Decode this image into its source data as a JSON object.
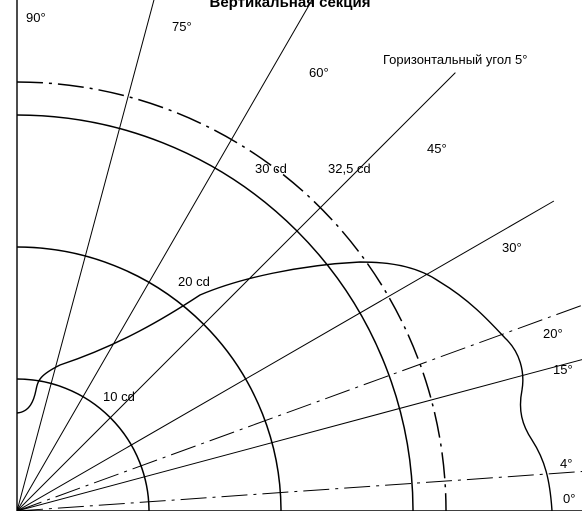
{
  "title": "Вертикальная секция",
  "horizontal_angle_label": "Горизонтальный угол 5°",
  "angle_lines": [
    {
      "angle": 90,
      "label": "90°",
      "style": "solid"
    },
    {
      "angle": 75,
      "label": "75°",
      "style": "solid"
    },
    {
      "angle": 60,
      "label": "60°",
      "style": "solid"
    },
    {
      "angle": 45,
      "label": "45°",
      "style": "solid"
    },
    {
      "angle": 30,
      "label": "30°",
      "style": "solid"
    },
    {
      "angle": 20,
      "label": "20°",
      "style": "dashdot"
    },
    {
      "angle": 15,
      "label": "15°",
      "style": "solid"
    },
    {
      "angle": 4,
      "label": "4°",
      "style": "dashdot"
    },
    {
      "angle": 0,
      "label": "0°",
      "style": "solid"
    }
  ],
  "iso_circles": [
    {
      "value": 10,
      "label": "10 cd",
      "style": "solid"
    },
    {
      "value": 20,
      "label": "20 cd",
      "style": "solid"
    },
    {
      "value": 30,
      "label": "30 cd",
      "style": "solid"
    },
    {
      "value": 32.5,
      "label": "32,5 cd",
      "style": "dashdot"
    }
  ],
  "colors": {
    "line": "#000000",
    "background": "#ffffff"
  }
}
